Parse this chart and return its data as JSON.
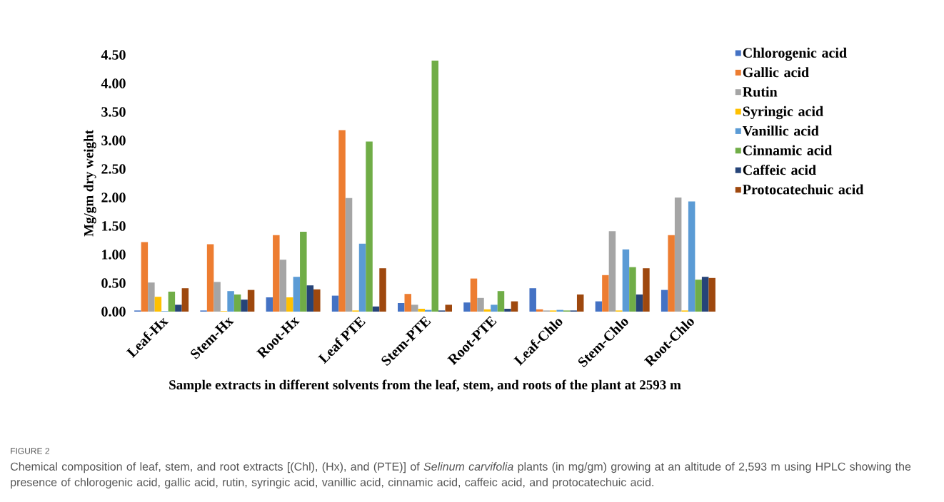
{
  "chart_data": {
    "type": "bar",
    "ylabel": "Mg/gm dry weight",
    "xlabel": "Sample extracts in different solvents from the leaf, stem, and roots of the plant at 2593 m",
    "categories": [
      "Leaf-Hx",
      "Stem-Hx",
      "Root-Hx",
      "Leaf PTE",
      "Stem-PTE",
      "Root-PTE",
      "Leaf-Chlo",
      "Stem-Chlo",
      "Root-Chlo"
    ],
    "series": [
      {
        "name": "Chlorogenic acid",
        "color": "#4472c4",
        "values": [
          0.02,
          0.02,
          0.25,
          0.28,
          0.15,
          0.16,
          0.41,
          0.18,
          0.38
        ]
      },
      {
        "name": "Gallic acid",
        "color": "#ed7d31",
        "values": [
          1.22,
          1.18,
          1.34,
          3.18,
          0.31,
          0.58,
          0.04,
          0.64,
          1.34
        ]
      },
      {
        "name": "Rutin",
        "color": "#a5a5a5",
        "values": [
          0.51,
          0.52,
          0.91,
          1.99,
          0.12,
          0.24,
          0.02,
          1.41,
          2.0
        ]
      },
      {
        "name": "Syringic acid",
        "color": "#ffc000",
        "values": [
          0.26,
          0.01,
          0.25,
          0.02,
          0.05,
          0.04,
          0.02,
          0.02,
          0.02
        ]
      },
      {
        "name": "Vanillic acid",
        "color": "#5b9bd5",
        "values": [
          0.01,
          0.36,
          0.61,
          1.19,
          0.03,
          0.12,
          0.03,
          1.09,
          1.93
        ]
      },
      {
        "name": "Cinnamic acid",
        "color": "#70ad47",
        "values": [
          0.35,
          0.3,
          1.4,
          2.98,
          4.4,
          0.36,
          0.02,
          0.78,
          0.56
        ]
      },
      {
        "name": "Caffeic acid",
        "color": "#264478",
        "values": [
          0.12,
          0.21,
          0.46,
          0.09,
          0.02,
          0.05,
          0.02,
          0.3,
          0.61
        ]
      },
      {
        "name": "Protocatechuic acid",
        "color": "#9e480e",
        "values": [
          0.41,
          0.38,
          0.39,
          0.76,
          0.12,
          0.18,
          0.3,
          0.76,
          0.59
        ]
      }
    ],
    "ylim": [
      0,
      4.5
    ],
    "yticks": [
      {
        "value": 0,
        "label": "0.00"
      },
      {
        "value": 0.5,
        "label": "0.50"
      },
      {
        "value": 1,
        "label": "1.00"
      },
      {
        "value": 1.5,
        "label": "1.50"
      },
      {
        "value": 2,
        "label": "2.00"
      },
      {
        "value": 2.5,
        "label": "2.50"
      },
      {
        "value": 3,
        "label": "3.00"
      },
      {
        "value": 3.5,
        "label": "3.50"
      },
      {
        "value": 4,
        "label": "4.00"
      },
      {
        "value": 4.5,
        "label": "4.50"
      }
    ],
    "legend": "right",
    "annotations": [
      "FIGURE 2",
      "Chemical composition of leaf, stem, and root extracts [(Chl), (Hx), and (PTE)] of *Selinum carvifolia* plants (in mg/gm) growing at an altitude of 2,593 m using HPLC showing the presence of chlorogenic acid, gallic acid, rutin, syringic acid, vanillic acid, cinnamic acid, caffeic acid, and protocatechuic acid."
    ]
  }
}
